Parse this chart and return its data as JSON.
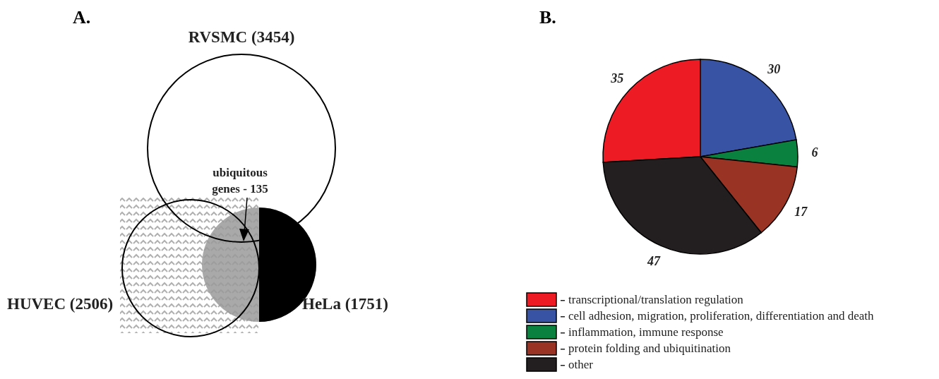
{
  "chart_data": [
    {
      "type": "other",
      "title": "A.",
      "categories": [
        "RVSMC (3454)",
        "HUVEC (2506)",
        "HeLa (1751)"
      ],
      "annotations": [
        "ubiquitous genes - 135"
      ]
    },
    {
      "type": "pie",
      "title": "B.",
      "categories": [
        "transcriptional/translation regulation",
        "cell adhesion, migration, proliferation, differentiation and death",
        "inflammation, immune response",
        "protein folding and ubiquitination",
        "other"
      ],
      "values": [
        35,
        30,
        6,
        17,
        47
      ],
      "colors": [
        "#ed1c24",
        "#3953a4",
        "#0b8140",
        "#993323",
        "#231f20"
      ],
      "data_labels": true,
      "legend": "bottom"
    }
  ]
}
